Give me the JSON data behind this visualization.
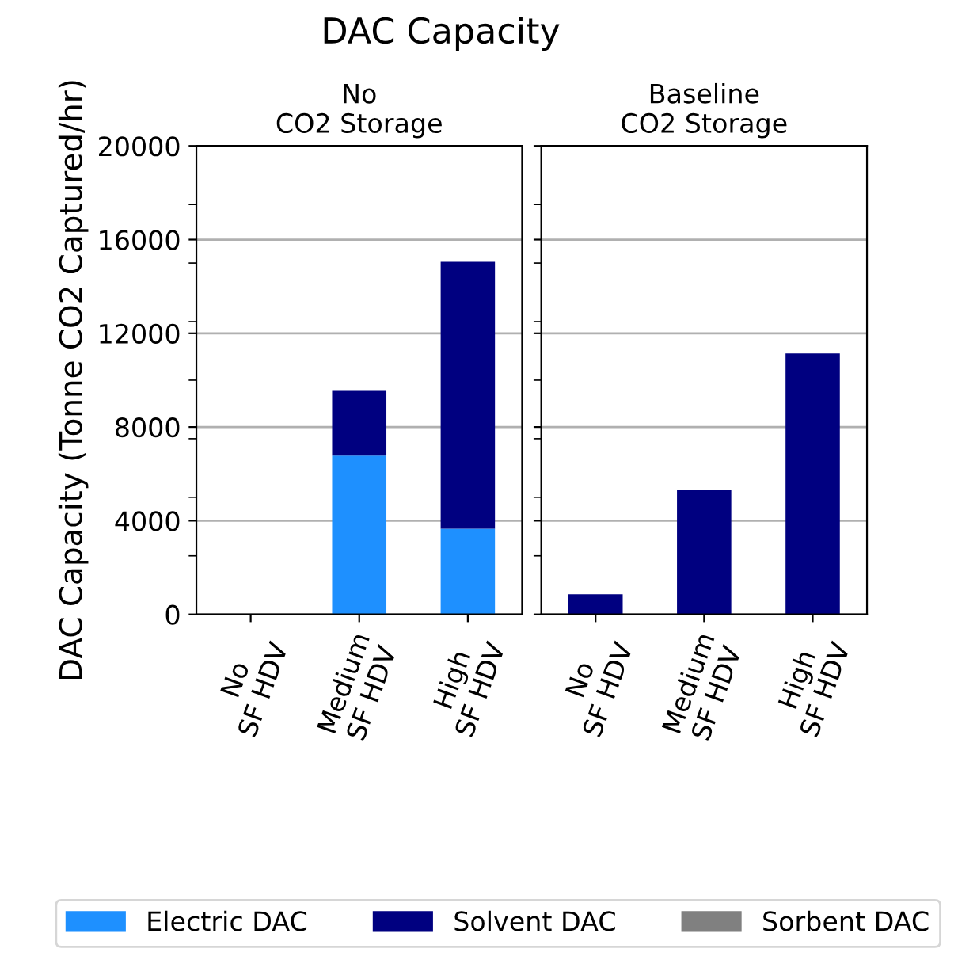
{
  "chart_data": [
    {
      "type": "bar",
      "title": "No\nCO2 Storage",
      "ylabel": "DAC Capacity (Tonne CO2 Captured/hr)",
      "annotations": [
        "DAC Capacity"
      ],
      "categories": [
        "No\nSF HDV",
        "Medium\nSF HDV",
        "High\nSF HDV"
      ],
      "stacked": true,
      "series": [
        {
          "name": "Electric DAC",
          "color": "#1e90ff",
          "values": [
            0,
            6780,
            3660
          ]
        },
        {
          "name": "Solvent DAC",
          "color": "#000080",
          "values": [
            0,
            2760,
            11390
          ]
        },
        {
          "name": "Sorbent DAC",
          "color": "#808080",
          "values": [
            0,
            0,
            0
          ]
        }
      ],
      "ylim": [
        0,
        20000
      ],
      "yticks": [
        0,
        {
          "value": 2500,
          "label": null
        },
        4000,
        {
          "value": 5000,
          "label": null
        },
        {
          "value": 7500,
          "label": null
        },
        8000,
        {
          "value": 10000,
          "label": null
        },
        12000,
        {
          "value": 12500,
          "label": null
        },
        {
          "value": 15000,
          "label": null
        },
        16000,
        {
          "value": 17500,
          "label": null
        },
        20000
      ],
      "grid": "y",
      "legend": "bottom"
    },
    {
      "type": "bar",
      "title": "Baseline\nCO2 Storage",
      "categories": [
        "No\nSF HDV",
        "Medium\nSF HDV",
        "High\nSF HDV"
      ],
      "stacked": true,
      "series": [
        {
          "color": "#1e90ff",
          "values": [
            0,
            0,
            0
          ]
        },
        {
          "color": "#000080",
          "values": [
            860,
            5310,
            11140
          ]
        },
        {
          "color": "#808080",
          "values": [
            0,
            0,
            0
          ]
        }
      ],
      "ylim": [
        0,
        20000
      ],
      "yticks": [
        0,
        {
          "value": 2500,
          "label": null
        },
        4000,
        {
          "value": 5000,
          "label": null
        },
        {
          "value": 7500,
          "label": null
        },
        8000,
        {
          "value": 10000,
          "label": null
        },
        12000,
        {
          "value": 12500,
          "label": null
        },
        {
          "value": 15000,
          "label": null
        },
        16000,
        {
          "value": 17500,
          "label": null
        },
        20000
      ],
      "grid": "y",
      "tick_labels": "x"
    }
  ]
}
